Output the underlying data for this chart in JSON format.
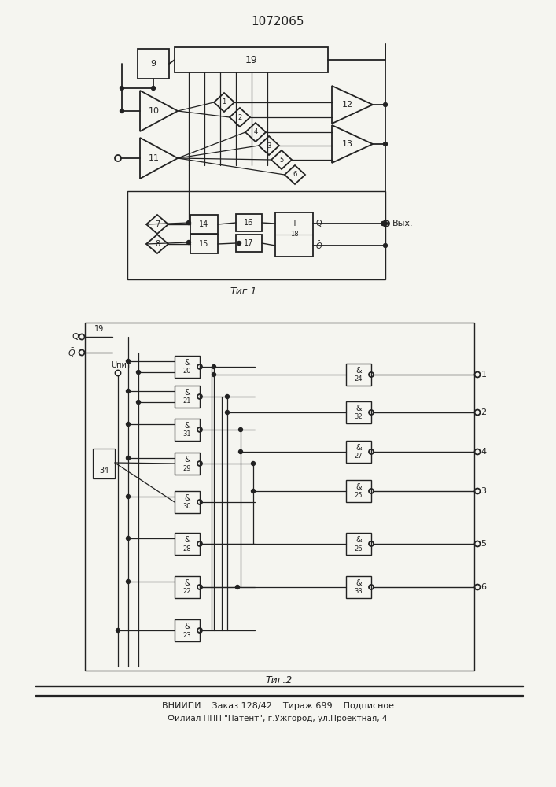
{
  "title": "1072065",
  "fig1_caption": "Τиг.1",
  "fig2_caption": "Τиг.2",
  "footer_line1": "ВНИИПИ    Заказ 128/42    Тираж 699    Подписное",
  "footer_line2": "Филиал ППП \"Патент\", г.Ужгород, ул.Проектная, 4",
  "bg_color": "#f5f5f0",
  "line_color": "#222222"
}
